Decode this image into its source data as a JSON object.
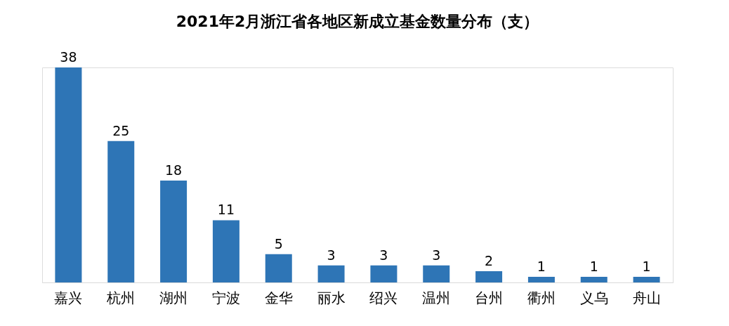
{
  "chart_data": {
    "type": "bar",
    "title": "2021年2月浙江省各地区新成立基金数量分布（支）",
    "categories": [
      "嘉兴",
      "杭州",
      "湖州",
      "宁波",
      "金华",
      "丽水",
      "绍兴",
      "温州",
      "台州",
      "衢州",
      "义乌",
      "舟山"
    ],
    "values": [
      38,
      25,
      18,
      11,
      5,
      3,
      3,
      3,
      2,
      1,
      1,
      1
    ],
    "color": "#2e75b6",
    "data_labels": true
  }
}
